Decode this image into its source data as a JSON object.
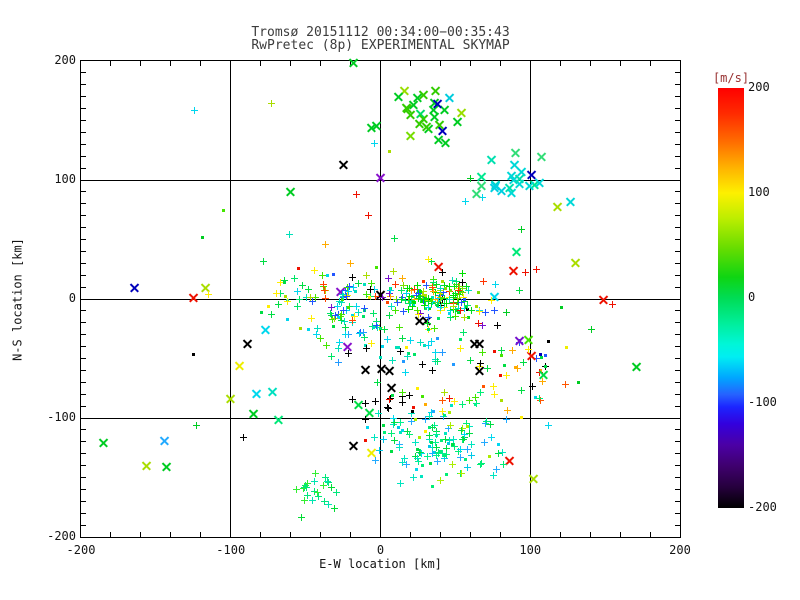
{
  "title": {
    "line1": "Tromsø 20151112 00:34:00−00:35:43",
    "line2": "RwPretec (8p) EXPERIMENTAL SKYMAP"
  },
  "chart_data": {
    "type": "scatter",
    "title": "Tromsø 20151112 00:34:00−00:35:43",
    "subtitle": "RwPretec (8p) EXPERIMENTAL SKYMAP",
    "xlabel": "E-W location [km]",
    "ylabel": "N-S location [km]",
    "xlim": [
      -200,
      200
    ],
    "ylim": [
      -200,
      200
    ],
    "x_ticks": [
      -200,
      -100,
      0,
      100,
      200
    ],
    "y_ticks": [
      200,
      100,
      0,
      -100,
      -200
    ],
    "x_minor_step": 20,
    "y_minor_step": 10,
    "grid_values": [
      -100,
      0,
      100
    ],
    "grid": true,
    "legend_position": "none",
    "marker_types": [
      "plus",
      "x",
      "dot"
    ],
    "seed": 11,
    "colorbar": {
      "label": "[m/s]",
      "label_color": "#993333",
      "min": -200,
      "max": 200,
      "ticks": [
        200,
        100,
        0,
        -100,
        -200
      ],
      "gradient_stops": [
        {
          "pct": 0,
          "color": "#ff0000"
        },
        {
          "pct": 6,
          "color": "#ff2a00"
        },
        {
          "pct": 13,
          "color": "#ff6f00"
        },
        {
          "pct": 19,
          "color": "#ffb300"
        },
        {
          "pct": 25,
          "color": "#fdf000"
        },
        {
          "pct": 31,
          "color": "#bdee00"
        },
        {
          "pct": 38,
          "color": "#69dd00"
        },
        {
          "pct": 45,
          "color": "#0fd512"
        },
        {
          "pct": 50,
          "color": "#00dc55"
        },
        {
          "pct": 56,
          "color": "#00ee9a"
        },
        {
          "pct": 61,
          "color": "#00f6d8"
        },
        {
          "pct": 64,
          "color": "#00eef2"
        },
        {
          "pct": 69,
          "color": "#00a6ff"
        },
        {
          "pct": 73,
          "color": "#2662ff"
        },
        {
          "pct": 76,
          "color": "#1c24ff"
        },
        {
          "pct": 80,
          "color": "#3300dd"
        },
        {
          "pct": 85,
          "color": "#4b00a5"
        },
        {
          "pct": 90,
          "color": "#3f006e"
        },
        {
          "pct": 95,
          "color": "#26003d"
        },
        {
          "pct": 100,
          "color": "#000000"
        }
      ]
    },
    "clusters": [
      {
        "name": "core-east",
        "cx": 40,
        "cy": 1,
        "sx": 14,
        "sy": 8,
        "n": 150,
        "markers": [
          "plus",
          "plus",
          "plus",
          "plus",
          "dot"
        ],
        "colors": [
          "#00dd22",
          "#00dd22",
          "#00e000",
          "#44e600",
          "#7cdd00",
          "#00dd22",
          "#00e566",
          "#00e0b8",
          "#00d6ee",
          "#aadd00",
          "#ffee00",
          "#ffaa00",
          "#ff3300",
          "#000000",
          "#2255ff",
          "#00e000",
          "#00e566"
        ]
      },
      {
        "name": "core-west",
        "cx": -22,
        "cy": -5,
        "sx": 24,
        "sy": 13,
        "n": 100,
        "markers": [
          "plus",
          "plus",
          "plus",
          "dot"
        ],
        "colors": [
          "#00dd44",
          "#00e566",
          "#00dfc0",
          "#00d6ee",
          "#44e600",
          "#00dd44",
          "#aadd00",
          "#ffee00",
          "#ff4400",
          "#7711cc",
          "#2255ff",
          "#000000",
          "#00e566",
          "#00d6ee"
        ]
      },
      {
        "name": "core-south",
        "cx": 15,
        "cy": -40,
        "sx": 30,
        "sy": 15,
        "n": 55,
        "markers": [
          "plus",
          "plus",
          "dot"
        ],
        "colors": [
          "#00dd44",
          "#00e0b8",
          "#00d6ee",
          "#00e566",
          "#44e600",
          "#000000",
          "#ffee00",
          "#2299ff"
        ]
      },
      {
        "name": "top-green-x",
        "cx": 30,
        "cy": 157,
        "sx": 11,
        "sy": 13,
        "n": 27,
        "markers": [
          "x"
        ],
        "colors": [
          "#00cc22",
          "#00cc22",
          "#00cc22",
          "#00cc22",
          "#00cc22",
          "#33cc00",
          "#33cc00",
          "#77dd00",
          "#99dd00",
          "#00dd66",
          "#00ccdd",
          "#0000bb",
          "#00cc22",
          "#33cc00"
        ]
      },
      {
        "name": "upper-right-teal-x",
        "cx": 82,
        "cy": 102,
        "sx": 12,
        "sy": 11,
        "n": 21,
        "markers": [
          "x"
        ],
        "colors": [
          "#00e0b0",
          "#00d8d8",
          "#00e890",
          "#00cfe0",
          "#33dd77",
          "#00e0b0",
          "#00d8d8"
        ]
      },
      {
        "name": "bottom-center",
        "cx": 37,
        "cy": -122,
        "sx": 20,
        "sy": 14,
        "n": 130,
        "markers": [
          "plus",
          "plus",
          "plus",
          "dot"
        ],
        "colors": [
          "#00ee77",
          "#00e5c0",
          "#00d8f0",
          "#00dd44",
          "#00f090",
          "#00c8e8",
          "#00ee77",
          "#00e5c0",
          "#00dd44",
          "#22aaff",
          "#aaee00"
        ]
      },
      {
        "name": "bottom-left-green",
        "cx": -42,
        "cy": -164,
        "sx": 9,
        "sy": 8,
        "n": 24,
        "markers": [
          "plus"
        ],
        "colors": [
          "#00dd33",
          "#00e87c",
          "#33ee33",
          "#00e5b0",
          "#00dd33"
        ]
      },
      {
        "name": "black-x-group",
        "cx": -2,
        "cy": -88,
        "sx": 11,
        "sy": 6,
        "n": 13,
        "markers": [
          "x",
          "plus",
          "plus"
        ],
        "colors": [
          "#000000",
          "#000000",
          "#000000",
          "#000000",
          "#00dd44",
          "#ee1100"
        ]
      },
      {
        "name": "right-mid-mixed",
        "cx": 95,
        "cy": -50,
        "sx": 11,
        "sy": 11,
        "n": 22,
        "markers": [
          "plus",
          "dot",
          "x"
        ],
        "colors": [
          "#000000",
          "#ee1100",
          "#ffaa00",
          "#ffee00",
          "#00dd44",
          "#2255ff",
          "#0000bb",
          "#7711cc",
          "#00e0c0",
          "#44e600"
        ]
      },
      {
        "name": "south-band",
        "cx": 55,
        "cy": -82,
        "sx": 27,
        "sy": 7,
        "n": 28,
        "markers": [
          "plus",
          "dot"
        ],
        "colors": [
          "#00dd44",
          "#aadd00",
          "#ffee00",
          "#ffaa00",
          "#ff5500",
          "#ee1100",
          "#00d6ee",
          "#000000",
          "#00ee77",
          "#44e600"
        ]
      },
      {
        "name": "halo",
        "cx": 5,
        "cy": -12,
        "sx": 55,
        "sy": 42,
        "n": 42,
        "markers": [
          "plus",
          "dot",
          "plus"
        ],
        "colors": [
          "#00dd44",
          "#00d6ee",
          "#00e566",
          "#2255ff",
          "#7711cc",
          "#ffee00",
          "#ee1100",
          "#000000",
          "#00dd44",
          "#00e0b8",
          "#ffaa00",
          "#44e600"
        ]
      }
    ],
    "points": [
      [
        -18,
        199,
        "#00cc22",
        "x"
      ],
      [
        -6,
        144,
        "#00cc22",
        "x"
      ],
      [
        -3,
        146,
        "#00cc22",
        "x"
      ],
      [
        -124,
        158,
        "#00d6ee",
        "plus"
      ],
      [
        -73,
        164,
        "#aadd00",
        "plus"
      ],
      [
        6,
        124,
        "#aadd00",
        "dot"
      ],
      [
        -25,
        113,
        "#000000",
        "x"
      ],
      [
        0,
        102,
        "#8811cc",
        "x"
      ],
      [
        101,
        105,
        "#0000bb",
        "x"
      ],
      [
        -60,
        90,
        "#00cc22",
        "x"
      ],
      [
        -16,
        88,
        "#ee1100",
        "plus"
      ],
      [
        -37,
        46,
        "#ffaa00",
        "plus"
      ],
      [
        -119,
        52,
        "#00cc22",
        "dot"
      ],
      [
        -164,
        10,
        "#0000bb",
        "x"
      ],
      [
        -125,
        1,
        "#ee1100",
        "x"
      ],
      [
        -117,
        10,
        "#aadd00",
        "x"
      ],
      [
        118,
        78,
        "#aadd00",
        "x"
      ],
      [
        127,
        82,
        "#00d8d8",
        "x"
      ],
      [
        130,
        31,
        "#aadd00",
        "x"
      ],
      [
        149,
        0,
        "#ee1100",
        "x"
      ],
      [
        155,
        -5,
        "#ee1100",
        "plus"
      ],
      [
        141,
        -26,
        "#00cc22",
        "plus"
      ],
      [
        171,
        -57,
        "#00cc22",
        "x"
      ],
      [
        112,
        -36,
        "#000000",
        "dot"
      ],
      [
        124,
        -41,
        "#eeee00",
        "dot"
      ],
      [
        110,
        -57,
        "#000000",
        "plus"
      ],
      [
        107,
        -60,
        "#ffaa00",
        "dot"
      ],
      [
        108,
        -69,
        "#ffaa00",
        "plus"
      ],
      [
        132,
        -70,
        "#00cc22",
        "dot"
      ],
      [
        107,
        -85,
        "#ff5500",
        "plus"
      ],
      [
        112,
        -106,
        "#00d6ee",
        "plus"
      ],
      [
        121,
        -7,
        "#00cc22",
        "dot"
      ],
      [
        84,
        -11,
        "#00cc22",
        "plus"
      ],
      [
        94,
        58,
        "#00cc22",
        "plus"
      ],
      [
        91,
        40,
        "#00e878",
        "x"
      ],
      [
        89,
        24,
        "#ee1100",
        "x"
      ],
      [
        97,
        22,
        "#ee1100",
        "plus"
      ],
      [
        104,
        25,
        "#ee1100",
        "plus"
      ],
      [
        76,
        2,
        "#00d8ee",
        "x"
      ],
      [
        39,
        27,
        "#ee1100",
        "x"
      ],
      [
        57,
        82,
        "#00d6ee",
        "plus"
      ],
      [
        68,
        85,
        "#00d6ee",
        "plus"
      ],
      [
        60,
        101,
        "#00cc22",
        "plus"
      ],
      [
        -4,
        131,
        "#00d6ee",
        "plus"
      ],
      [
        -27,
        6,
        "#8811cc",
        "x"
      ],
      [
        -22,
        -40,
        "#8811cc",
        "x"
      ],
      [
        68,
        -22,
        "#7711cc",
        "plus"
      ],
      [
        31,
        -18,
        "#000000",
        "x"
      ],
      [
        26,
        -18,
        "#000000",
        "x"
      ],
      [
        66,
        -37,
        "#000000",
        "x"
      ],
      [
        63,
        -37,
        "#000000",
        "x"
      ],
      [
        0,
        4,
        "#000000",
        "x"
      ],
      [
        -10,
        -59,
        "#000000",
        "x"
      ],
      [
        1,
        -58,
        "#000000",
        "x"
      ],
      [
        6,
        -60,
        "#000000",
        "x"
      ],
      [
        66,
        -60,
        "#000000",
        "x"
      ],
      [
        -89,
        -37,
        "#000000",
        "x"
      ],
      [
        -77,
        -26,
        "#00d8ee",
        "x"
      ],
      [
        -94,
        -56,
        "#eeee00",
        "x"
      ],
      [
        -83,
        -79,
        "#00d8ee",
        "x"
      ],
      [
        -72,
        -78,
        "#00e0c0",
        "x"
      ],
      [
        -85,
        -96,
        "#00cc22",
        "x"
      ],
      [
        -68,
        -101,
        "#00e878",
        "x"
      ],
      [
        -100,
        -84,
        "#aadd00",
        "x"
      ],
      [
        -123,
        -106,
        "#00cc22",
        "plus"
      ],
      [
        -185,
        -121,
        "#00cc22",
        "x"
      ],
      [
        -144,
        -119,
        "#22aaff",
        "x"
      ],
      [
        -156,
        -140,
        "#aadd00",
        "x"
      ],
      [
        -143,
        -141,
        "#00cc22",
        "x"
      ],
      [
        -18,
        -123,
        "#000000",
        "x"
      ],
      [
        -6,
        -129,
        "#eeee00",
        "x"
      ],
      [
        -10,
        -119,
        "#ee1100",
        "dot"
      ],
      [
        86,
        -136,
        "#ee1100",
        "x"
      ],
      [
        102,
        -151,
        "#aadd00",
        "x"
      ]
    ]
  }
}
